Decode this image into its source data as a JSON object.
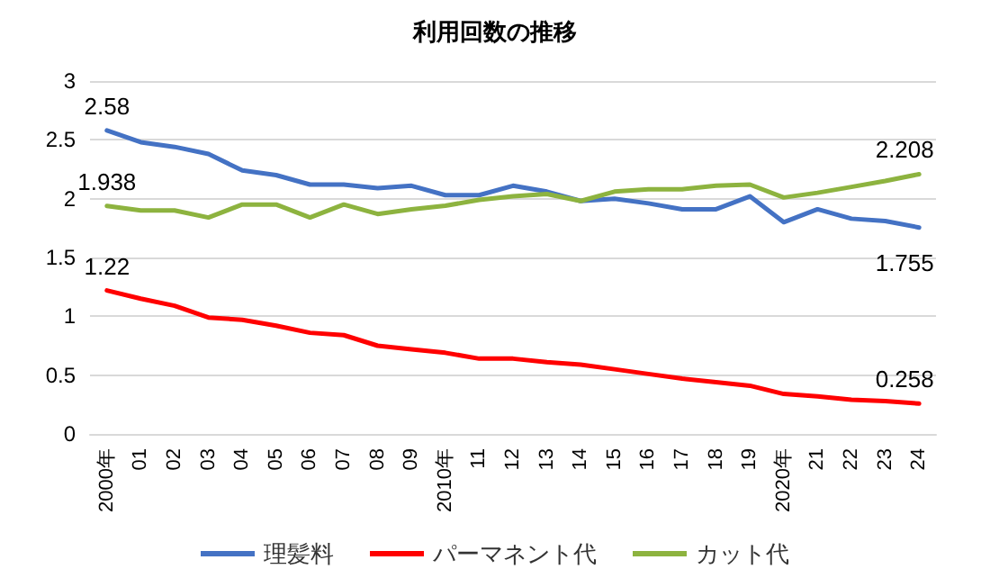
{
  "chart_data": {
    "type": "line",
    "title": "利用回数の推移",
    "categories": [
      "2000年",
      "01",
      "02",
      "03",
      "04",
      "05",
      "06",
      "07",
      "08",
      "09",
      "2010年",
      "11",
      "12",
      "13",
      "14",
      "15",
      "16",
      "17",
      "18",
      "19",
      "2020年",
      "21",
      "22",
      "23",
      "24"
    ],
    "series": [
      {
        "name": "理髪料",
        "color": "#4472c4",
        "values": [
          2.58,
          2.48,
          2.44,
          2.38,
          2.24,
          2.2,
          2.12,
          2.12,
          2.09,
          2.11,
          2.03,
          2.03,
          2.11,
          2.06,
          1.98,
          2.0,
          1.96,
          1.91,
          1.91,
          2.02,
          1.8,
          1.91,
          1.83,
          1.81,
          1.755
        ],
        "value_labels": [
          "2.58",
          null,
          null,
          null,
          null,
          null,
          null,
          null,
          null,
          null,
          null,
          null,
          null,
          null,
          null,
          null,
          null,
          null,
          null,
          null,
          null,
          null,
          null,
          null,
          "1.755"
        ]
      },
      {
        "name": "パーマネント代",
        "color": "#ff0000",
        "values": [
          1.22,
          1.15,
          1.09,
          0.99,
          0.97,
          0.92,
          0.86,
          0.84,
          0.75,
          0.72,
          0.69,
          0.64,
          0.64,
          0.61,
          0.59,
          0.55,
          0.51,
          0.47,
          0.44,
          0.41,
          0.34,
          0.32,
          0.29,
          0.28,
          0.258
        ],
        "value_labels": [
          "1.22",
          null,
          null,
          null,
          null,
          null,
          null,
          null,
          null,
          null,
          null,
          null,
          null,
          null,
          null,
          null,
          null,
          null,
          null,
          null,
          null,
          null,
          null,
          null,
          "0.258"
        ]
      },
      {
        "name": "カット代",
        "color": "#8db33f",
        "values": [
          1.938,
          1.9,
          1.9,
          1.84,
          1.95,
          1.95,
          1.84,
          1.95,
          1.87,
          1.91,
          1.94,
          1.99,
          2.02,
          2.04,
          1.98,
          2.06,
          2.08,
          2.08,
          2.11,
          2.12,
          2.01,
          2.05,
          2.1,
          2.15,
          2.208
        ],
        "value_labels": [
          "1.938",
          null,
          null,
          null,
          null,
          null,
          null,
          null,
          null,
          null,
          null,
          null,
          null,
          null,
          null,
          null,
          null,
          null,
          null,
          null,
          null,
          null,
          null,
          null,
          "2.208"
        ]
      }
    ],
    "ylim": [
      0,
      3
    ],
    "yticks": [
      0,
      0.5,
      1,
      1.5,
      2,
      2.5,
      3
    ],
    "grid": "y",
    "legend": "bottom",
    "marker": "none",
    "line_style": "solid"
  }
}
